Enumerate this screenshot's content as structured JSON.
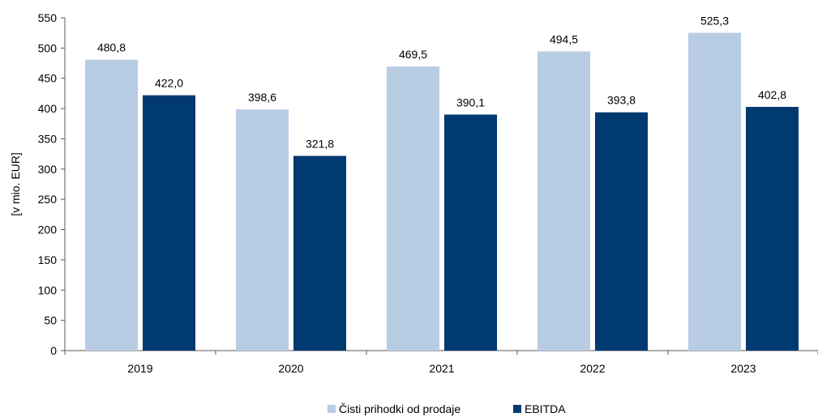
{
  "chart_data": {
    "type": "bar",
    "categories": [
      "2019",
      "2020",
      "2021",
      "2022",
      "2023"
    ],
    "series": [
      {
        "name": "Čisti prihodki od prodaje",
        "values": [
          480.8,
          398.6,
          469.5,
          494.5,
          525.3
        ],
        "labels": [
          "480,8",
          "398,6",
          "469,5",
          "494,5",
          "525,3"
        ],
        "color": "#b8cce4"
      },
      {
        "name": "EBITDA",
        "values": [
          422.0,
          321.8,
          390.1,
          393.8,
          402.8
        ],
        "labels": [
          "422,0",
          "321,8",
          "390,1",
          "393,8",
          "402,8"
        ],
        "color": "#003a70"
      }
    ],
    "ylabel": "[v mio. EUR]",
    "xlabel": "",
    "ylim": [
      0,
      550
    ],
    "yticks": [
      0,
      50,
      100,
      150,
      200,
      250,
      300,
      350,
      400,
      450,
      500,
      550
    ],
    "grid": false,
    "legend": "bottom"
  }
}
